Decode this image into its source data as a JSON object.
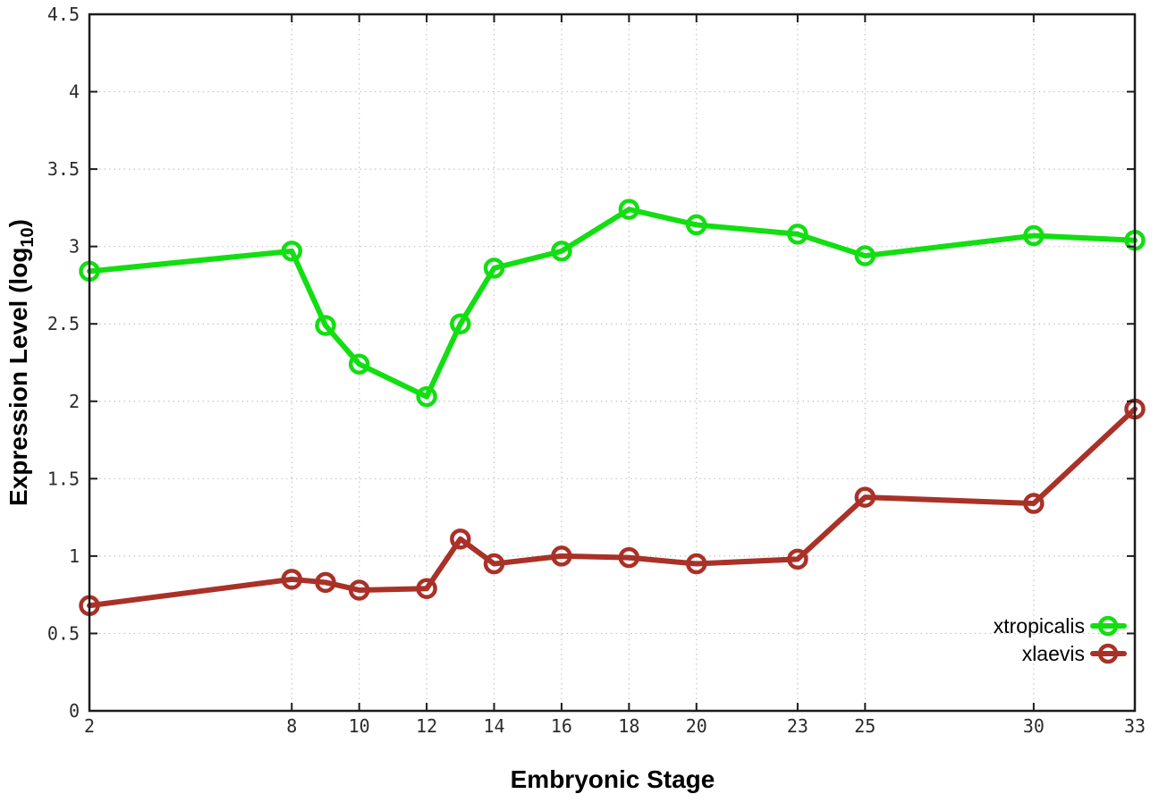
{
  "chart_data": {
    "type": "line",
    "title": "",
    "xlabel": "Embryonic Stage",
    "ylabel_parts": {
      "pre": "Expression Level (log",
      "sub": "10",
      "post": ")"
    },
    "xlim": [
      2,
      33
    ],
    "ylim": [
      0,
      4.5
    ],
    "grid": true,
    "legend_position": "bottom-right",
    "x": [
      2,
      8,
      9,
      10,
      12,
      13,
      14,
      16,
      18,
      20,
      23,
      25,
      30,
      33
    ],
    "x_tick_values": [
      2,
      8,
      10,
      12,
      14,
      16,
      18,
      20,
      23,
      25,
      30,
      33
    ],
    "x_tick_labels": [
      "2",
      "8",
      "10",
      "12",
      "14",
      "16",
      "18",
      "20",
      "23",
      "25",
      "30",
      "33"
    ],
    "y_tick_values": [
      0,
      0.5,
      1,
      1.5,
      2,
      2.5,
      3,
      3.5,
      4,
      4.5
    ],
    "y_tick_labels": [
      "0",
      "0.5",
      "1",
      "1.5",
      "2",
      "2.5",
      "3",
      "3.5",
      "4",
      "4.5"
    ],
    "series": [
      {
        "name": "xtropicalis",
        "color": "#12de12",
        "values": [
          2.84,
          2.97,
          2.49,
          2.24,
          2.03,
          2.5,
          2.86,
          2.97,
          3.24,
          3.14,
          3.08,
          2.94,
          3.07,
          3.04
        ]
      },
      {
        "name": "xlaevis",
        "color": "#a93128",
        "values": [
          0.68,
          0.85,
          0.83,
          0.78,
          0.79,
          1.11,
          0.95,
          1.0,
          0.99,
          0.95,
          0.98,
          1.38,
          1.34,
          1.95
        ]
      }
    ]
  },
  "style": {
    "background": "#ffffff",
    "grid_color": "#c4c4c4",
    "border_color": "#1c1c1c",
    "tick_label_color": "#2b2b2b",
    "title_color": "#000000"
  }
}
